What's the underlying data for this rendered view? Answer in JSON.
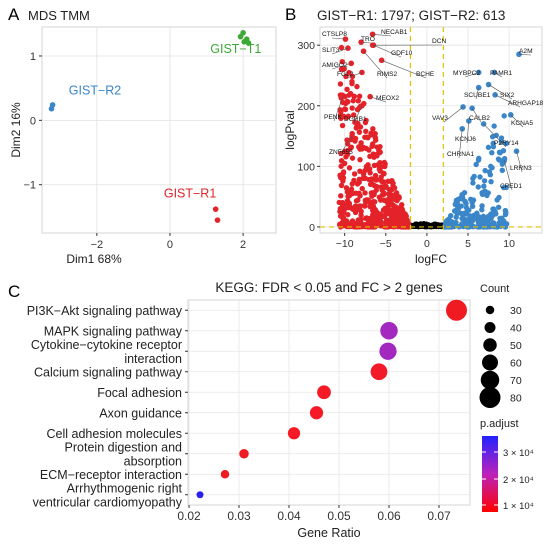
{
  "chart_data": [
    {
      "panel": "A",
      "type": "scatter",
      "title": "MDS TMM",
      "xlabel": "Dim1 68%",
      "ylabel": "Dim2 16%",
      "xlim": [
        -3.5,
        2.9
      ],
      "ylim": [
        -1.75,
        1.45
      ],
      "xticks": [
        -2,
        0,
        2
      ],
      "yticks": [
        -1,
        0,
        1
      ],
      "xtick_labels": [
        "−2",
        "0",
        "2"
      ],
      "ytick_labels": [
        "−1",
        "0",
        "1"
      ],
      "grid": true,
      "series": [
        {
          "name": "GIST−T1",
          "color": "#3aaa35",
          "x": [
            1.93,
            2.0,
            2.03,
            2.1,
            2.15
          ],
          "y": [
            1.3,
            1.36,
            1.22,
            1.26,
            1.2
          ]
        },
        {
          "name": "GIST−R2",
          "color": "#3a86c8",
          "x": [
            -3.24,
            -3.21
          ],
          "y": [
            0.18,
            0.24
          ]
        },
        {
          "name": "GIST−R1",
          "color": "#e32229",
          "x": [
            1.25,
            1.3
          ],
          "y": [
            -1.38,
            -1.55
          ]
        }
      ],
      "labels": [
        {
          "text": "GIST−T1",
          "color": "#3aaa35",
          "x": 1.8,
          "y": 1.05
        },
        {
          "text": "GIST−R2",
          "color": "#3a86c8",
          "x": -2.05,
          "y": 0.4
        },
        {
          "text": "GIST−R1",
          "color": "#e32229",
          "x": 0.55,
          "y": -1.2
        }
      ]
    },
    {
      "panel": "B",
      "type": "scatter",
      "title": "GIST−R1: 1797; GIST−R2: 613",
      "xlabel": "logFC",
      "ylabel": "logPval",
      "xlim": [
        -13,
        14
      ],
      "ylim": [
        -10,
        330
      ],
      "xticks": [
        -10,
        -5,
        0,
        5,
        10
      ],
      "yticks": [
        0,
        100,
        200,
        300
      ],
      "xtick_labels": [
        "−10",
        "−5",
        "0",
        "5",
        "10"
      ],
      "ytick_labels": [
        "0",
        "100",
        "200",
        "300"
      ],
      "grid": true,
      "thresholds": {
        "logFC": [
          -2,
          2
        ],
        "logPval": 0
      },
      "colors": {
        "down": "#e32229",
        "up": "#3a86c8",
        "ns": "#000000",
        "threshold": "#e0c000"
      },
      "labeled_genes": [
        {
          "gene": "CTSLP8",
          "x": -9.9,
          "y": 310
        },
        {
          "gene": "SLIT3",
          "x": -9.6,
          "y": 295
        },
        {
          "gene": "AMIGO2",
          "x": -9.2,
          "y": 270
        },
        {
          "gene": "TRO",
          "x": -8.0,
          "y": 305
        },
        {
          "gene": "NECAB1",
          "x": -6.6,
          "y": 318
        },
        {
          "gene": "GDF10",
          "x": -6.5,
          "y": 300
        },
        {
          "gene": "DCN",
          "x": -6.6,
          "y": 300
        },
        {
          "gene": "FGL2",
          "x": -7.9,
          "y": 255
        },
        {
          "gene": "RIMS2",
          "x": -7.7,
          "y": 290
        },
        {
          "gene": "BCHE",
          "x": -5.5,
          "y": 275
        },
        {
          "gene": "PENK",
          "x": -10.2,
          "y": 215
        },
        {
          "gene": "MEOX2",
          "x": -6.9,
          "y": 215
        },
        {
          "gene": "DGRB1",
          "x": -7.9,
          "y": 200
        },
        {
          "gene": "ZNF655",
          "x": -9.1,
          "y": 150
        },
        {
          "gene": "A2M",
          "x": 11.2,
          "y": 285
        },
        {
          "gene": "PAMR1",
          "x": 8.2,
          "y": 255
        },
        {
          "gene": "MYBPC2",
          "x": 6.3,
          "y": 255
        },
        {
          "gene": "SIX2",
          "x": 7.5,
          "y": 235
        },
        {
          "gene": "SCUBE1",
          "x": 6.3,
          "y": 230
        },
        {
          "gene": "ARHGAP18",
          "x": 8.3,
          "y": 218
        },
        {
          "gene": "VAV3",
          "x": 4.4,
          "y": 198
        },
        {
          "gene": "CALB2",
          "x": 5.5,
          "y": 196
        },
        {
          "gene": "KCNA5",
          "x": 10.2,
          "y": 185
        },
        {
          "gene": "KCNJ6",
          "x": 5.1,
          "y": 175
        },
        {
          "gene": "P2RY14",
          "x": 6.9,
          "y": 170
        },
        {
          "gene": "CHRNA1",
          "x": 4.3,
          "y": 162
        },
        {
          "gene": "LRRN3",
          "x": 10.9,
          "y": 125
        },
        {
          "gene": "CPED1",
          "x": 9.4,
          "y": 110
        }
      ]
    },
    {
      "panel": "C",
      "type": "scatter",
      "title": "KEGG: FDR < 0.05 and FC > 2 genes",
      "xlabel": "Gene Ratio",
      "ylabel": "",
      "xlim": [
        0.0198,
        0.0762
      ],
      "xticks": [
        0.02,
        0.03,
        0.04,
        0.05,
        0.06,
        0.07
      ],
      "xtick_labels": [
        "0.02",
        "0.03",
        "0.04",
        "0.05",
        "0.06",
        "0.07"
      ],
      "grid": true,
      "categories": [
        [
          "PI3K−Akt signaling pathway"
        ],
        [
          "MAPK signaling pathway"
        ],
        [
          "Cytokine−cytokine receptor",
          "interaction"
        ],
        [
          "Calcium signaling pathway"
        ],
        [
          "Focal adhesion"
        ],
        [
          "Axon guidance"
        ],
        [
          "Cell adhesion molecules"
        ],
        [
          "Protein digestion and",
          "absorption"
        ],
        [
          "ECM−receptor interaction"
        ],
        [
          "Arrhythmogenic right",
          "ventricular cardiomyopathy"
        ]
      ],
      "gene_ratio": [
        0.0735,
        0.06,
        0.0598,
        0.058,
        0.047,
        0.0455,
        0.041,
        0.031,
        0.0272,
        0.0222
      ],
      "count": [
        80,
        66,
        65,
        63,
        51,
        49,
        45,
        34,
        30,
        24
      ],
      "p_adjust": [
        1e-60,
        0.00025,
        0.00025,
        1e-60,
        1e-60,
        1e-60,
        1e-60,
        1e-60,
        1e-60,
        0.0004
      ],
      "colors": [
        "#f01a22",
        "#a228bf",
        "#a228bf",
        "#f21a28",
        "#f51a26",
        "#f51a26",
        "#f51a26",
        "#ee1c24",
        "#f01a22",
        "#2a1eea"
      ],
      "legend": {
        "count_title": "Count",
        "count_values": [
          30,
          40,
          50,
          60,
          70,
          80
        ],
        "count_labels": [
          "30",
          "40",
          "50",
          "60",
          "70",
          "80"
        ],
        "color_title": "p.adjust",
        "color_ticks": [
          "3 × 10⁴",
          "2 × 10⁴",
          "1 × 10⁴"
        ],
        "color_low": "#ff0000",
        "color_high": "#2222ff",
        "position": "right"
      }
    }
  ],
  "panel_letters": [
    "A",
    "B",
    "C"
  ]
}
